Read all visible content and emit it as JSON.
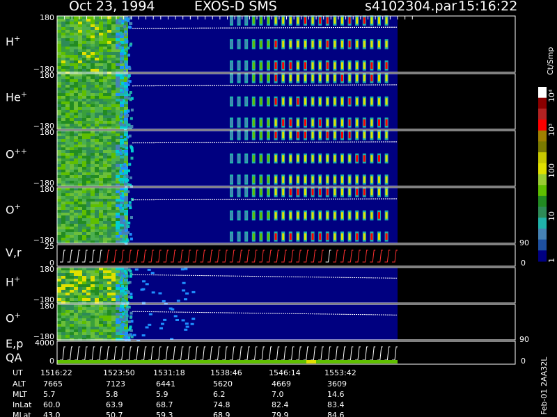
{
  "header": {
    "date": "Oct 23, 1994",
    "instrument": "EXOS-D SMS",
    "filename": "s4102304.par",
    "time": "15:16:22"
  },
  "panels": [
    {
      "label": "H",
      "sup": "+",
      "ytop": "180",
      "ybot": "−180"
    },
    {
      "label": "He",
      "sup": "+",
      "ytop": "180",
      "ybot": "−180"
    },
    {
      "label": "O",
      "sup": "++",
      "ytop": "180",
      "ybot": "−180"
    },
    {
      "label": "O",
      "sup": "+",
      "ytop": "180",
      "ybot": "−180"
    },
    {
      "label": "V,r",
      "sup": "",
      "ytop": "25",
      "ybot": "0",
      "rtop": "90",
      "rbot": "0"
    },
    {
      "label": "H",
      "sup": "+",
      "ytop": "180",
      "ybot": "−180"
    },
    {
      "label": "O",
      "sup": "+",
      "ytop": "180",
      "ybot": "−180"
    },
    {
      "label": "E,p",
      "label2": "QA",
      "sup": "",
      "ytop": "4000",
      "ybot": "0",
      "rtop": "90",
      "rbot": "0"
    }
  ],
  "colorbar": {
    "unit_label": "Ct/Smp",
    "tick_labels": [
      "10⁴",
      "10³",
      "100",
      "10",
      "1"
    ],
    "colors": [
      "#ffffff",
      "#8b0000",
      "#b22222",
      "#ff0000",
      "#a08000",
      "#7a7a00",
      "#c8c800",
      "#e0e000",
      "#9acd32",
      "#5fbf00",
      "#228b22",
      "#2e8b57",
      "#20b2aa",
      "#4682b4",
      "#1e50a0",
      "#000080"
    ]
  },
  "footer": {
    "row_labels": [
      "UT",
      "ALT",
      "MLT",
      "InLat",
      "MLat"
    ],
    "columns": [
      {
        "UT": "1516:22",
        "ALT": "7665",
        "MLT": "5.7",
        "InLat": "60.0",
        "MLat": "43.0"
      },
      {
        "UT": "1523:50",
        "ALT": "7123",
        "MLT": "5.8",
        "InLat": "63.9",
        "MLat": "50.7"
      },
      {
        "UT": "1531:18",
        "ALT": "6441",
        "MLT": "5.9",
        "InLat": "68.7",
        "MLat": "59.3"
      },
      {
        "UT": "1538:46",
        "ALT": "5620",
        "MLT": "6.2",
        "InLat": "74.8",
        "MLat": "68.9"
      },
      {
        "UT": "1546:14",
        "ALT": "4669",
        "MLT": "7.0",
        "InLat": "82.4",
        "MLat": "79.9"
      },
      {
        "UT": "1553:42",
        "ALT": "3609",
        "MLT": "14.6",
        "InLat": "83.4",
        "MLat": "84.6"
      }
    ],
    "side_note": "Feb-01 2AA32L"
  },
  "chart_data": {
    "type": "heatmap",
    "title": "Oct 23, 1994   EXOS-D SMS",
    "x_tick_labels": [
      "1516:22",
      "1523:50",
      "1531:18",
      "1538:46",
      "1546:14",
      "1553:42"
    ],
    "series": [
      {
        "name": "H+"
      },
      {
        "name": "He+"
      },
      {
        "name": "O++"
      },
      {
        "name": "O+"
      },
      {
        "name": "V,r"
      },
      {
        "name": "H+"
      },
      {
        "name": "O+"
      },
      {
        "name": "E,p QA"
      }
    ],
    "colorbar_range": [
      1,
      10000
    ],
    "colorbar_scale": "log",
    "colors": {
      "background": "#000080",
      "low": "#1e50a0",
      "mid": "#5fbf00",
      "high": "#e0e000",
      "max": "#ff0000"
    }
  }
}
